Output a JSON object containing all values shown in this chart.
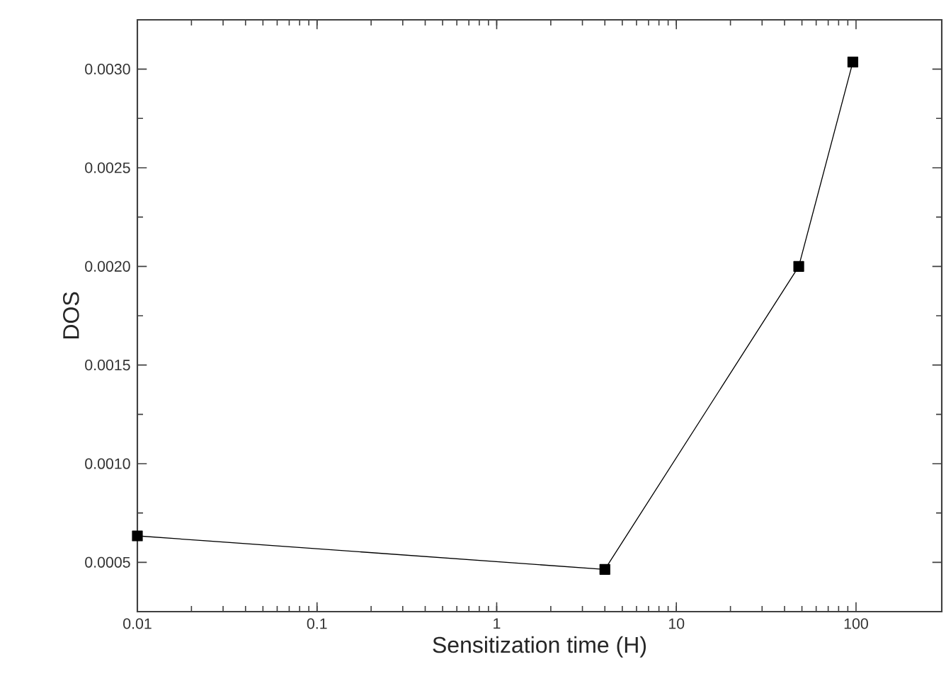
{
  "chart_data": {
    "type": "line",
    "xlabel": "Sensitization time (H)",
    "ylabel": "DOS",
    "log": "x",
    "marker": "square",
    "line_style": "solid",
    "x": [
      0.01,
      4,
      48,
      96
    ],
    "series": [
      {
        "color": "#000000",
        "values": [
          0.000634,
          0.000464,
          0.002,
          0.003036
        ]
      }
    ],
    "xlim": [
      0.01,
      300
    ],
    "ylim": [
      0.00025,
      0.00325
    ],
    "xticks": [
      0.01,
      0.1,
      1,
      10,
      100
    ],
    "yticks": [
      {
        "value": 0.0005,
        "label": "0.0005"
      },
      {
        "value": 0.001,
        "label": "0.0010"
      },
      {
        "value": 0.0015,
        "label": "0.0015"
      },
      {
        "value": 0.002,
        "label": "0.0020"
      },
      {
        "value": 0.0025,
        "label": "0.0025"
      },
      {
        "value": 0.003,
        "label": "0.0030"
      }
    ]
  }
}
